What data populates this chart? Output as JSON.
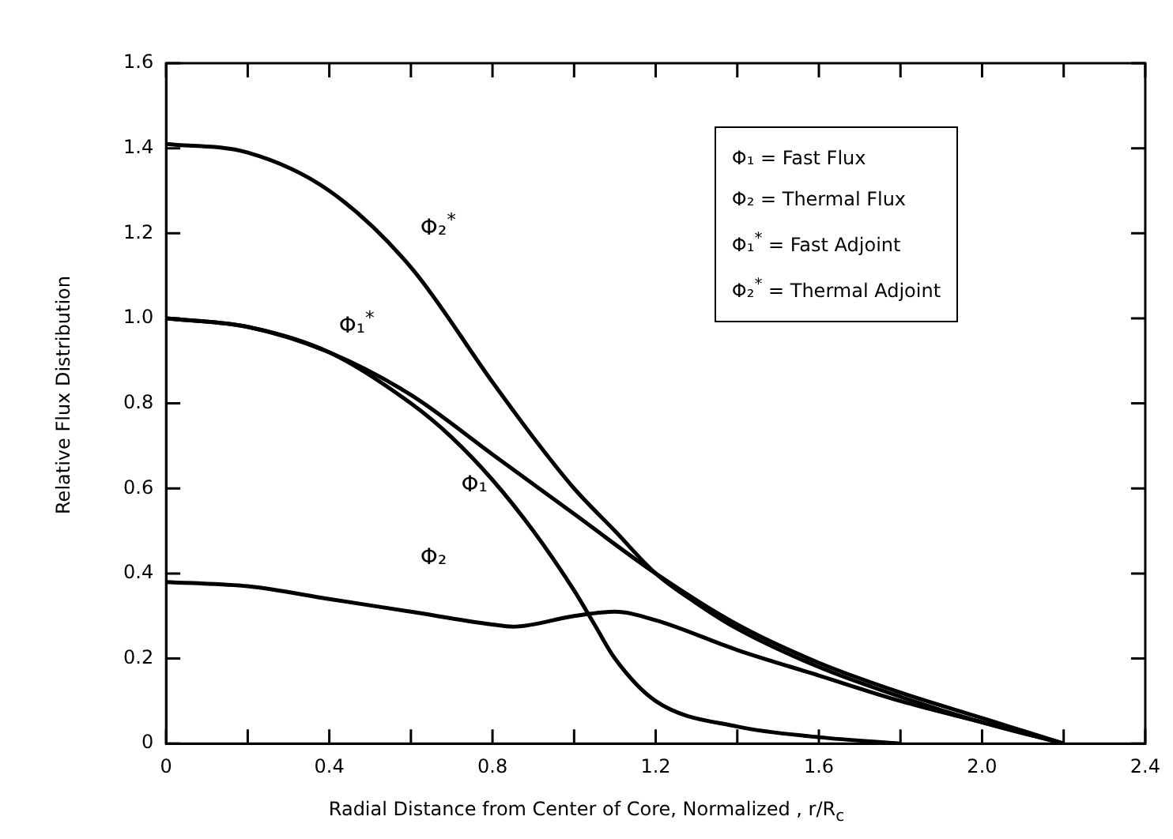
{
  "chart_data": {
    "type": "line",
    "xlabel": "Radial Distance from Center of Core, Normalized , r/R$_{c}$",
    "ylabel": "Relative Flux Distribution",
    "annotations": [
      "Φ₁ = Fast Flux",
      "Φ₂ = Thermal Flux",
      "Φ₁$^{*}$ = Fast Adjoint",
      "Φ₂$^{*}$ = Thermal Adjoint"
    ],
    "xlim": [
      0,
      2.4
    ],
    "xticks": [
      0,
      {
        "value": 0.2,
        "label": null
      },
      0.4,
      {
        "value": 0.6,
        "label": null
      },
      0.8,
      {
        "value": 1,
        "label": null
      },
      1.2,
      {
        "value": 1.4,
        "label": null
      },
      1.6,
      {
        "value": 1.8,
        "label": null
      },
      {
        "value": 2,
        "label": "2.0"
      },
      {
        "value": 2.2,
        "label": null
      },
      2.4
    ],
    "ylim": [
      0,
      1.6
    ],
    "yticks": [
      0,
      0.2,
      0.4,
      0.6,
      0.8,
      {
        "value": 1,
        "label": "1.0"
      },
      1.2,
      1.4,
      1.6
    ],
    "grid": false,
    "legend": false,
    "marker": "none",
    "line_style": "solid",
    "series": [
      {
        "name": "Φ₂$^{*}$",
        "color": "#000000",
        "x": [
          0,
          0.2,
          0.4,
          0.6,
          0.8,
          0.9,
          1.0,
          1.1,
          1.2,
          1.3,
          1.4,
          1.6,
          1.8,
          2.0,
          2.2
        ],
        "values": [
          1.41,
          1.39,
          1.3,
          1.12,
          0.85,
          0.72,
          0.6,
          0.5,
          0.4,
          0.33,
          0.27,
          0.18,
          0.11,
          0.05,
          0
        ]
      },
      {
        "name": "Φ₁$^{*}$",
        "color": "#000000",
        "x": [
          0,
          0.2,
          0.4,
          0.6,
          0.8,
          1.0,
          1.2,
          1.4,
          1.6,
          1.8,
          2.0,
          2.2
        ],
        "values": [
          1.0,
          0.98,
          0.92,
          0.82,
          0.68,
          0.54,
          0.4,
          0.28,
          0.19,
          0.12,
          0.06,
          0
        ]
      },
      {
        "name": "Φ₁",
        "color": "#000000",
        "x": [
          0,
          0.2,
          0.4,
          0.6,
          0.7,
          0.8,
          0.9,
          1.0,
          1.05,
          1.1,
          1.2,
          1.4,
          1.6,
          1.8
        ],
        "values": [
          1.0,
          0.98,
          0.92,
          0.8,
          0.72,
          0.62,
          0.5,
          0.36,
          0.28,
          0.2,
          0.1,
          0.04,
          0.015,
          0
        ]
      },
      {
        "name": "Φ₂",
        "color": "#000000",
        "x": [
          0,
          0.2,
          0.4,
          0.6,
          0.8,
          0.85,
          1.0,
          1.1,
          1.2,
          1.4,
          1.6,
          1.8,
          2.0,
          2.2
        ],
        "values": [
          0.38,
          0.37,
          0.34,
          0.31,
          0.28,
          0.275,
          0.3,
          0.31,
          0.29,
          0.22,
          0.16,
          0.1,
          0.05,
          0
        ]
      }
    ]
  }
}
